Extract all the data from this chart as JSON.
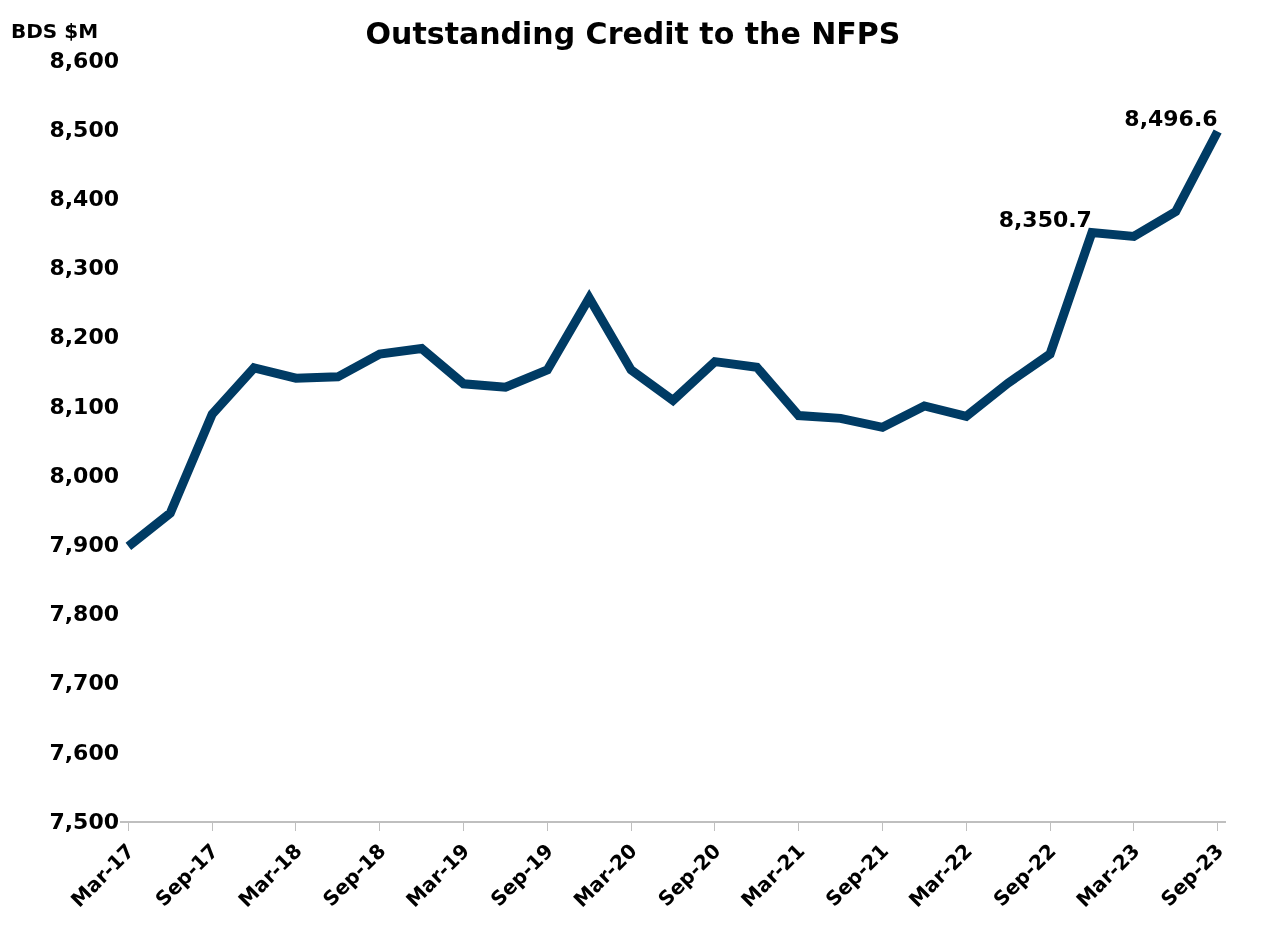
{
  "chart_data": {
    "type": "line",
    "title": "Outstanding Credit to the NFPS",
    "ylabel": "BDS $M",
    "categories": [
      "Mar-17",
      null,
      "Sep-17",
      null,
      "Mar-18",
      null,
      "Sep-18",
      null,
      "Mar-19",
      null,
      "Sep-19",
      null,
      "Mar-20",
      null,
      "Sep-20",
      null,
      "Mar-21",
      null,
      "Sep-21",
      null,
      "Mar-22",
      null,
      "Sep-22",
      null,
      "Mar-23",
      null,
      "Sep-23"
    ],
    "series": [
      {
        "color": "#003b64",
        "values": [
          7897,
          7945,
          8088,
          8155,
          8140,
          8142,
          8175,
          8183,
          8132,
          8127,
          8152,
          8256,
          8152,
          8108,
          8164,
          8156,
          8086,
          8082,
          8069,
          8100,
          8085,
          8133,
          8175,
          8350.7,
          8345,
          8381,
          8496.6
        ],
        "value_labels": [
          null,
          null,
          null,
          null,
          null,
          null,
          null,
          null,
          null,
          null,
          null,
          null,
          null,
          null,
          null,
          null,
          null,
          null,
          null,
          null,
          null,
          null,
          null,
          "8,350.7",
          null,
          null,
          "8,496.6"
        ]
      }
    ],
    "ylim": [
      7500,
      8600
    ],
    "yticks": [
      {
        "value": 7500,
        "label": "7,500"
      },
      {
        "value": 7600,
        "label": "7,600"
      },
      {
        "value": 7700,
        "label": "7,700"
      },
      {
        "value": 7800,
        "label": "7,800"
      },
      {
        "value": 7900,
        "label": "7,900"
      },
      {
        "value": 8000,
        "label": "8,000"
      },
      {
        "value": 8100,
        "label": "8,100"
      },
      {
        "value": 8200,
        "label": "8,200"
      },
      {
        "value": 8300,
        "label": "8,300"
      },
      {
        "value": 8400,
        "label": "8,400"
      },
      {
        "value": 8500,
        "label": "8,500"
      },
      {
        "value": 8600,
        "label": "8,600"
      }
    ],
    "marker": "none",
    "line_style": "solid"
  }
}
